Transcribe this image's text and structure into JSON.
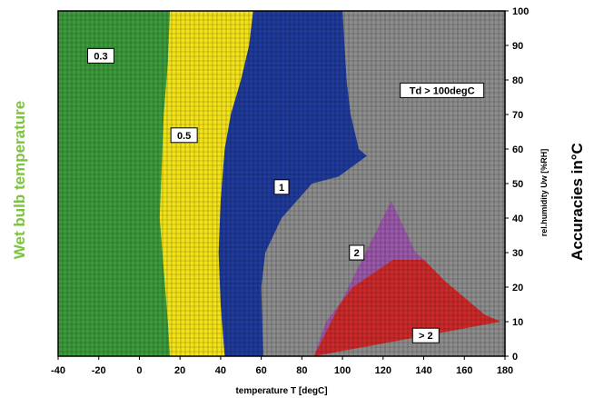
{
  "chart_data": {
    "type": "heatmap",
    "title_left": "Wet bulb temperature",
    "title_right": "Accuracies in°C",
    "xlabel": "temperature T [degC]",
    "ylabel": "rel.humidity Uw [%RH]",
    "xlim": [
      -40,
      180
    ],
    "ylim": [
      0,
      100
    ],
    "x_ticks": [
      -40,
      -20,
      0,
      20,
      40,
      60,
      80,
      100,
      120,
      140,
      160,
      180
    ],
    "y_ticks": [
      0,
      10,
      20,
      30,
      40,
      50,
      60,
      70,
      80,
      90,
      100
    ],
    "grid": true,
    "regions": [
      {
        "label": "0.3",
        "color": "#3c9a3c",
        "boundary": [
          [
            15,
            100
          ],
          [
            14,
            85
          ],
          [
            12,
            70
          ],
          [
            11,
            55
          ],
          [
            10,
            40
          ],
          [
            12,
            25
          ],
          [
            14,
            10
          ],
          [
            15,
            0
          ]
        ]
      },
      {
        "label": "0.5",
        "color": "#f2e21a",
        "boundary": [
          [
            56,
            100
          ],
          [
            54,
            90
          ],
          [
            50,
            80
          ],
          [
            45,
            70
          ],
          [
            42,
            60
          ],
          [
            40,
            45
          ],
          [
            39,
            30
          ],
          [
            40,
            15
          ],
          [
            42,
            0
          ]
        ]
      },
      {
        "label": "1",
        "color": "#1f3a9a",
        "boundary": [
          [
            100,
            100
          ],
          [
            102,
            80
          ],
          [
            104,
            70
          ],
          [
            108,
            60
          ],
          [
            112,
            58
          ],
          [
            98,
            52
          ],
          [
            85,
            50
          ],
          [
            70,
            40
          ],
          [
            62,
            30
          ],
          [
            60,
            20
          ],
          [
            61,
            0
          ]
        ]
      },
      {
        "label": "2",
        "color": "#9a58a8",
        "boundary": [
          [
            124,
            45
          ],
          [
            136,
            30
          ],
          [
            140,
            28
          ],
          [
            125,
            28
          ],
          [
            105,
            20
          ],
          [
            92,
            10
          ],
          [
            86,
            0
          ]
        ]
      },
      {
        "label": "> 2",
        "color": "#cc2a2a",
        "boundary": [
          [
            178,
            10
          ],
          [
            170,
            12
          ],
          [
            160,
            17
          ],
          [
            150,
            22
          ],
          [
            140,
            28
          ],
          [
            125,
            28
          ],
          [
            105,
            20
          ],
          [
            92,
            10
          ],
          [
            86,
            0
          ]
        ]
      },
      {
        "label": "Td > 100degC",
        "color": "#8c8c8c",
        "boundary": [
          [
            100,
            100
          ],
          [
            102,
            80
          ],
          [
            104,
            70
          ],
          [
            108,
            60
          ],
          [
            115,
            55
          ],
          [
            124,
            45
          ],
          [
            136,
            30
          ],
          [
            150,
            22
          ],
          [
            160,
            17
          ],
          [
            170,
            12
          ],
          [
            178,
            10
          ]
        ]
      }
    ],
    "labels": [
      {
        "text": "0.3",
        "x": -19,
        "y": 87
      },
      {
        "text": "0.5",
        "x": 22,
        "y": 64
      },
      {
        "text": "1",
        "x": 70,
        "y": 49
      },
      {
        "text": "2",
        "x": 107,
        "y": 30
      },
      {
        "text": "> 2",
        "x": 141,
        "y": 6
      },
      {
        "text": "Td > 100degC",
        "x": 149,
        "y": 77
      }
    ]
  }
}
